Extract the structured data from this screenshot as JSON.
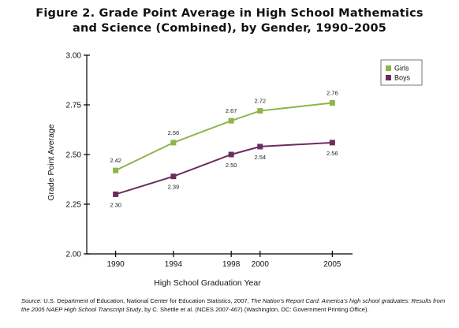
{
  "title_line1": "Figure 2. Grade Point Average in High School Mathematics",
  "title_line2": "and Science (Combined), by Gender, 1990–2005",
  "chart_data": {
    "type": "line",
    "categories": [
      "1990",
      "1994",
      "1998",
      "2000",
      "2005"
    ],
    "x": [
      1990,
      1994,
      1998,
      2000,
      2005
    ],
    "series": [
      {
        "name": "Girls",
        "color": "#8db54a",
        "values": [
          2.42,
          2.56,
          2.67,
          2.72,
          2.76
        ],
        "labels": [
          "2.42",
          "2.56",
          "2.67",
          "2.72",
          "2.76"
        ]
      },
      {
        "name": "Boys",
        "color": "#6b2d5e",
        "values": [
          2.3,
          2.39,
          2.5,
          2.54,
          2.56
        ],
        "labels": [
          "2.30",
          "2.39",
          "2.50",
          "2.54",
          "2.56"
        ]
      }
    ],
    "xlabel": "High School Graduation Year",
    "ylabel": "Grade Point Average",
    "ylim": [
      2.0,
      3.0
    ],
    "yticks": [
      "2.00",
      "2.25",
      "2.50",
      "2.75",
      "3.00"
    ],
    "grid": false,
    "legend": "top-right"
  },
  "source": {
    "label": "Source:",
    "part1": " U.S. Department of Education, National Center for Education Statistics, 2007, ",
    "italic1": "The Nation’s Report Card: America’s high school graduates: Results from the 2005 NAEP High School Transcript Study",
    "part2": ", by C. Shettle et al. (NCES 2007-467) (Washington, DC: Government Printing Office)."
  }
}
